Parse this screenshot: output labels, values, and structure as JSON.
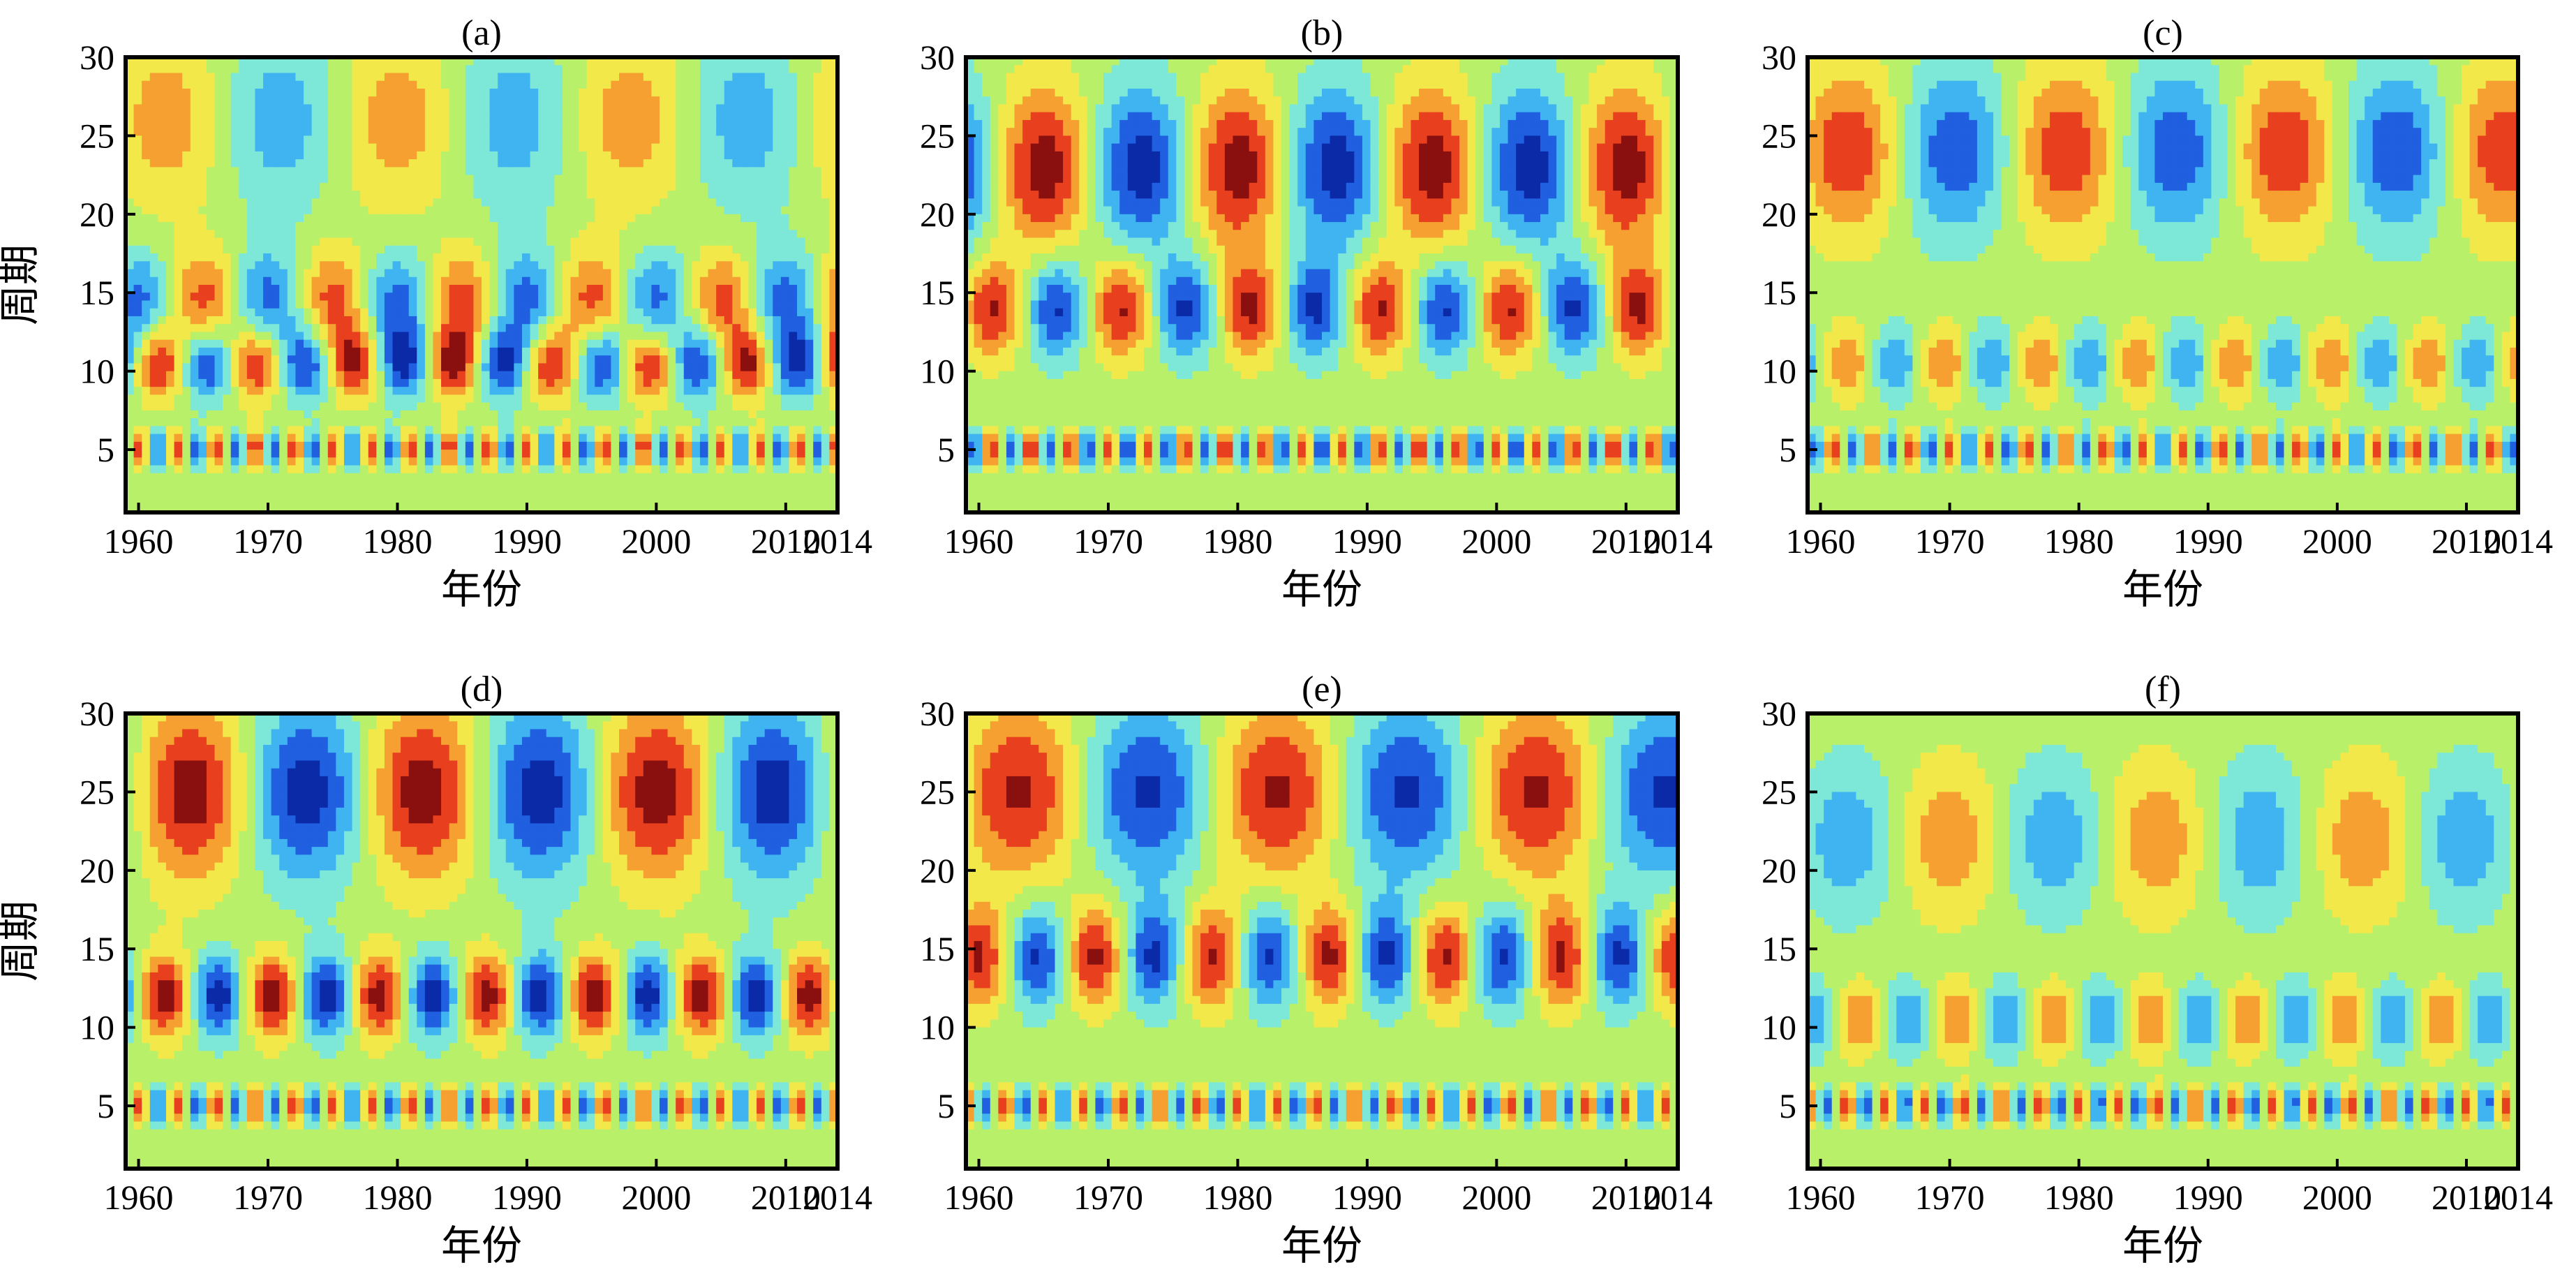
{
  "chart_data": [
    {
      "type": "heatmap",
      "title": "(a)",
      "xlabel": "年份",
      "ylabel": "周期",
      "xlim": [
        1959,
        2014
      ],
      "ylim": [
        1,
        30
      ],
      "xticks": [
        "1960",
        "1970",
        "1980",
        "1990",
        "2000",
        "2010",
        "2014"
      ],
      "yticks": [
        "5",
        "10",
        "15",
        "20",
        "25",
        "30"
      ],
      "bands": [
        {
          "period": 10.5,
          "amplitude": 0.9,
          "cycle_years": 7.6,
          "phase_year": 1961.5
        },
        {
          "period": 14.5,
          "amplitude": 0.7,
          "cycle_years": 10,
          "phase_year": 1985
        },
        {
          "period": 5,
          "amplitude": 0.8,
          "cycle_years": 3,
          "phase_year": 1963
        },
        {
          "period": 26,
          "amplitude": 0.5,
          "cycle_years": 18,
          "phase_year": 1962
        }
      ]
    },
    {
      "type": "heatmap",
      "title": "(b)",
      "xlabel": "年份",
      "ylabel": "",
      "xlim": [
        1959,
        2014
      ],
      "ylim": [
        1,
        30
      ],
      "xticks": [
        "1960",
        "1970",
        "1980",
        "1990",
        "2000",
        "2010",
        "2014"
      ],
      "yticks": [
        "5",
        "10",
        "15",
        "20",
        "25",
        "30"
      ],
      "bands": [
        {
          "period": 23,
          "amplitude": 1.0,
          "cycle_years": 15,
          "phase_year": 1965
        },
        {
          "period": 14,
          "amplitude": 0.9,
          "cycle_years": 10,
          "phase_year": 1981
        },
        {
          "period": 5,
          "amplitude": 0.9,
          "cycle_years": 3,
          "phase_year": 1976
        }
      ]
    },
    {
      "type": "heatmap",
      "title": "(c)",
      "xlabel": "年份",
      "ylabel": "",
      "xlim": [
        1959,
        2014
      ],
      "ylim": [
        1,
        30
      ],
      "xticks": [
        "1960",
        "1970",
        "1980",
        "1990",
        "2000",
        "2010",
        "2014"
      ],
      "yticks": [
        "5",
        "10",
        "15",
        "20",
        "25",
        "30"
      ],
      "bands": [
        {
          "period": 24,
          "amplitude": 0.8,
          "cycle_years": 17,
          "phase_year": 1996
        },
        {
          "period": 10.5,
          "amplitude": 0.6,
          "cycle_years": 7.5,
          "phase_year": 1962
        },
        {
          "period": 5,
          "amplitude": 0.8,
          "cycle_years": 3,
          "phase_year": 2009
        }
      ]
    },
    {
      "type": "heatmap",
      "title": "(d)",
      "xlabel": "年份",
      "ylabel": "周期",
      "xlim": [
        1959,
        2014
      ],
      "ylim": [
        1,
        30
      ],
      "xticks": [
        "1960",
        "1970",
        "1980",
        "1990",
        "2000",
        "2010",
        "2014"
      ],
      "yticks": [
        "5",
        "10",
        "15",
        "20",
        "25",
        "30"
      ],
      "bands": [
        {
          "period": 25,
          "amplitude": 1.0,
          "cycle_years": 18,
          "phase_year": 1964
        },
        {
          "period": 12,
          "amplitude": 1.0,
          "cycle_years": 8.3,
          "phase_year": 1962
        },
        {
          "period": 5,
          "amplitude": 0.8,
          "cycle_years": 3,
          "phase_year": 1990
        }
      ]
    },
    {
      "type": "heatmap",
      "title": "(e)",
      "xlabel": "年份",
      "ylabel": "",
      "xlim": [
        1959,
        2014
      ],
      "ylim": [
        1,
        30
      ],
      "xticks": [
        "1960",
        "1970",
        "1980",
        "1990",
        "2000",
        "2010",
        "2014"
      ],
      "yticks": [
        "5",
        "10",
        "15",
        "20",
        "25",
        "30"
      ],
      "bands": [
        {
          "period": 25,
          "amplitude": 0.9,
          "cycle_years": 20,
          "phase_year": 1963
        },
        {
          "period": 14.5,
          "amplitude": 0.9,
          "cycle_years": 9,
          "phase_year": 1960
        },
        {
          "period": 5,
          "amplitude": 0.7,
          "cycle_years": 3,
          "phase_year": 1980
        }
      ]
    },
    {
      "type": "heatmap",
      "title": "(f)",
      "xlabel": "年份",
      "ylabel": "",
      "xlim": [
        1959,
        2014
      ],
      "ylim": [
        1,
        30
      ],
      "xticks": [
        "1960",
        "1970",
        "1980",
        "1990",
        "2000",
        "2010",
        "2014"
      ],
      "yticks": [
        "5",
        "10",
        "15",
        "20",
        "25",
        "30"
      ],
      "bands": [
        {
          "period": 22,
          "amplitude": 0.55,
          "cycle_years": 16,
          "phase_year": 1970
        },
        {
          "period": 10.5,
          "amplitude": 0.6,
          "cycle_years": 7.5,
          "phase_year": 1963
        },
        {
          "period": 5,
          "amplitude": 0.8,
          "cycle_years": 3,
          "phase_year": 2010
        }
      ]
    }
  ]
}
